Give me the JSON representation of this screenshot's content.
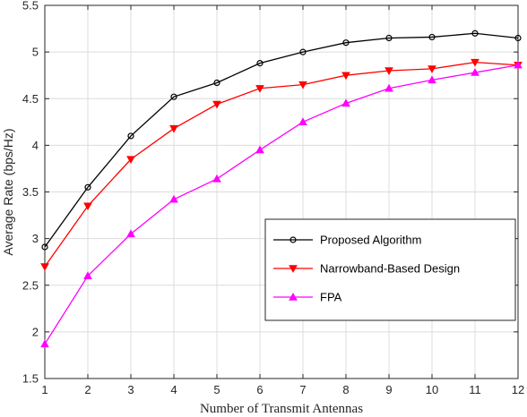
{
  "chart_data": {
    "type": "line",
    "xlabel": "Number of Transmit Antennas",
    "ylabel": "Average Rate (bps/Hz)",
    "xlim": [
      1,
      12
    ],
    "ylim": [
      1.5,
      5.5
    ],
    "xticks": [
      1,
      2,
      3,
      4,
      5,
      6,
      7,
      8,
      9,
      10,
      11,
      12
    ],
    "yticks": [
      1.5,
      2,
      2.5,
      3,
      3.5,
      4,
      4.5,
      5,
      5.5
    ],
    "grid": true,
    "legend_position": "center-right",
    "x": [
      1,
      2,
      3,
      4,
      5,
      6,
      7,
      8,
      9,
      10,
      11,
      12
    ],
    "series": [
      {
        "name": "Proposed Algorithm",
        "color": "#000000",
        "marker": "circle",
        "values": [
          2.91,
          3.55,
          4.1,
          4.52,
          4.67,
          4.88,
          5.0,
          5.1,
          5.15,
          5.16,
          5.2,
          5.15
        ]
      },
      {
        "name": "Narrowband-Based Design",
        "color": "#ff0000",
        "marker": "triangle-down",
        "values": [
          2.7,
          3.35,
          3.85,
          4.18,
          4.44,
          4.61,
          4.65,
          4.75,
          4.8,
          4.82,
          4.89,
          4.86
        ]
      },
      {
        "name": "FPA",
        "color": "#ff00ff",
        "marker": "triangle-up",
        "values": [
          1.87,
          2.6,
          3.05,
          3.42,
          3.64,
          3.95,
          4.25,
          4.45,
          4.61,
          4.7,
          4.78,
          4.86
        ]
      }
    ]
  }
}
